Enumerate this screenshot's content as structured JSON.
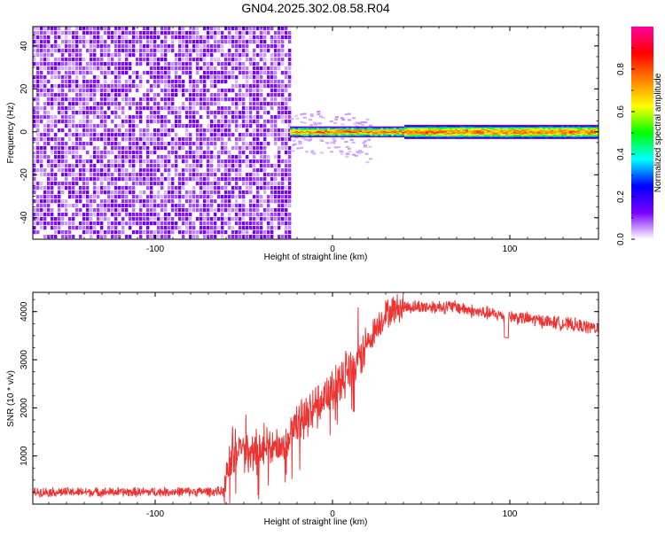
{
  "title": "GN04.2025.302.08.58.R04",
  "chart_data": [
    {
      "type": "heatmap",
      "xlabel": "Height of straight line (km)",
      "ylabel": "Frequency (Hz)",
      "xlim": [
        -169,
        150
      ],
      "ylim": [
        -50,
        49
      ],
      "xticks": [
        -100,
        0,
        100
      ],
      "yticks": [
        -40,
        -20,
        0,
        20,
        40
      ],
      "colorbar": {
        "label": "Normalized spectral amplitude",
        "range": [
          0,
          1
        ],
        "ticks": [
          "0.0",
          "0.2",
          "0.4",
          "0.6",
          "0.8"
        ],
        "tick_values": [
          0.0,
          0.2,
          0.4,
          0.6,
          0.8
        ],
        "colors": [
          "#ffffff",
          "#7a00ff",
          "#0000ff",
          "#00ffff",
          "#00ff00",
          "#ffff00",
          "#ff8000",
          "#ff0000",
          "#ff00a0"
        ]
      },
      "regions": [
        {
          "x_range": [
            -169,
            -24
          ],
          "f_range": [
            -50,
            49
          ],
          "amplitude": 0.1
        },
        {
          "x_range": [
            -24,
            150
          ],
          "f_center": 0,
          "half_width_hz": 3,
          "amplitude": 0.75
        }
      ]
    },
    {
      "type": "line",
      "xlabel": "Height of straight line (km)",
      "ylabel": "SNR (10 * v/v)",
      "xlim": [
        -169,
        150
      ],
      "ylim": [
        0,
        4400
      ],
      "xticks": [
        -100,
        0,
        100
      ],
      "yticks": [
        1000,
        2000,
        3000,
        4000
      ],
      "color": "#ee3333",
      "x": [
        -169,
        -140,
        -110,
        -80,
        -61,
        -58,
        -55,
        -50,
        -45,
        -40,
        -35,
        -30,
        -25,
        -20,
        -15,
        -10,
        -5,
        0,
        5,
        10,
        15,
        20,
        25,
        30,
        35,
        40,
        50,
        60,
        70,
        80,
        90,
        100,
        110,
        120,
        130,
        140,
        150
      ],
      "y": [
        250,
        250,
        250,
        260,
        260,
        900,
        1150,
        1050,
        1050,
        1100,
        1150,
        1250,
        1350,
        1600,
        1800,
        2000,
        2200,
        2350,
        2550,
        2750,
        3000,
        3350,
        3700,
        3950,
        4050,
        4100,
        4100,
        4100,
        4100,
        4000,
        3950,
        3900,
        3850,
        3800,
        3750,
        3700,
        3650
      ]
    }
  ]
}
